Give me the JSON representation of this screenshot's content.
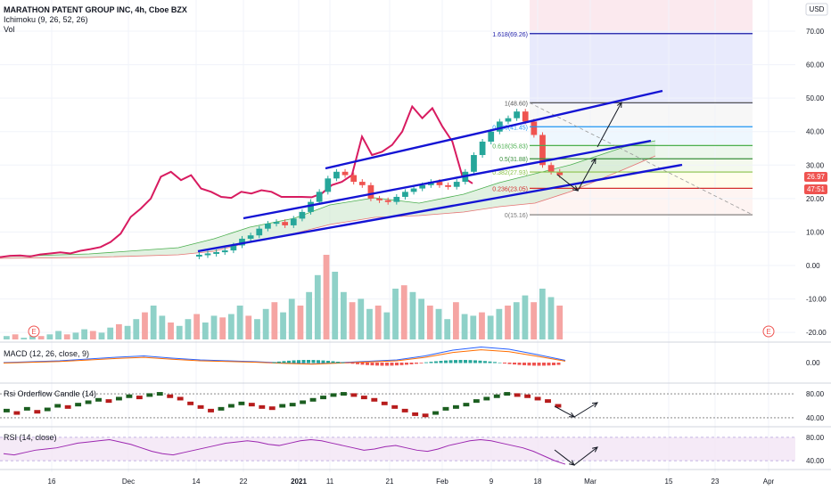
{
  "header": {
    "title": "MARATHON PATENT GROUP INC, 4h, Cboe BZX",
    "ichimoku_label": "Ichimoku (9, 26, 52, 26)",
    "vol_label": "Vol",
    "currency": "USD"
  },
  "panes": {
    "macd_label": "MACD (12, 26, close, 9)",
    "rsi_orderflow_label": "Rsi Orderflow Candle (14)",
    "rsi_label": "RSI (14, close)"
  },
  "price_tags": {
    "last_price": "26.97",
    "countdown": "47:51"
  },
  "colors": {
    "trend_channel": "#1414d4",
    "close_line": "#d81b60",
    "bull": "#26a69a",
    "bear": "#ef5350",
    "fib_1618": "#1a1aa8",
    "fib_1": "#555555",
    "fib_0786": "#2196f3",
    "fib_0618": "#4caf50",
    "fib_05": "#388e3c",
    "fib_0382": "#8bc34a",
    "fib_0236": "#d32f2f",
    "fib_0": "#777777",
    "rsi_line": "#9c27b0"
  },
  "chart_data": [
    {
      "type": "candlestick",
      "title": "MARATHON PATENT GROUP INC, 4h, Cboe BZX",
      "x_ticks": [
        "16",
        "Dec",
        "14",
        "22",
        "2021",
        "11",
        "21",
        "Feb",
        "9",
        "18",
        "Mar",
        "15",
        "23",
        "Apr"
      ],
      "y_ticks": [
        "70.00",
        "60.00",
        "50.00",
        "40.00",
        "30.00",
        "20.00",
        "10.00",
        "0.00",
        "-10.00",
        "-20.00"
      ],
      "ylim": [
        -22,
        77
      ],
      "close_series": [
        2.5,
        2.9,
        3.0,
        2.7,
        3.3,
        3.6,
        3.9,
        3.6,
        4.4,
        4.9,
        5.5,
        7.0,
        9.5,
        14.5,
        17.0,
        20.0,
        26.5,
        28.0,
        25.5,
        27.0,
        23.0,
        22.0,
        20.5,
        20.2,
        22.0,
        21.5,
        22.5,
        22.0,
        20.5,
        20.5,
        20.5,
        20.4,
        21.5,
        24.0,
        25.0,
        27.0,
        38.5,
        33.0,
        34.0,
        36.0,
        40.0,
        47.5,
        44.0,
        47.0,
        41.5,
        37.0,
        26.5,
        24.5
      ],
      "candles_close": [
        3.2,
        3.6,
        4.0,
        4.5,
        6.0,
        8.0,
        9.0,
        11.0,
        12.5,
        13.0,
        12.0,
        14.0,
        16.0,
        19.0,
        22.0,
        26.0,
        28.0,
        27.0,
        25.0,
        24.0,
        20.0,
        19.5,
        19.0,
        20.5,
        22.0,
        23.0,
        24.0,
        25.0,
        24.0,
        23.5,
        25.0,
        28.0,
        33.0,
        37.0,
        40.0,
        43.0,
        44.0,
        46.0,
        43.0,
        39.0,
        30.0,
        28.0,
        27.0
      ],
      "ichimoku_cloud_note": "",
      "fibonacci_levels": [
        {
          "ratio": "1.618",
          "price": "69.26",
          "label": "1.618(69.26)"
        },
        {
          "ratio": "1",
          "price": "48.60",
          "label": "1(48.60)"
        },
        {
          "ratio": "0.786",
          "price": "41.45",
          "label": "0.786(41.45)"
        },
        {
          "ratio": "0.618",
          "price": "35.83",
          "label": "0.618(35.83)"
        },
        {
          "ratio": "0.5",
          "price": "31.88",
          "label": "0.5(31.88)"
        },
        {
          "ratio": "0.382",
          "price": "27.93",
          "label": "0.382(27.93)"
        },
        {
          "ratio": "0.236",
          "price": "23.05",
          "label": "0.236(23.05)"
        },
        {
          "ratio": "0",
          "price": "15.16",
          "label": "0(15.16)"
        }
      ]
    },
    {
      "type": "bar",
      "title": "Vol",
      "values": [
        2,
        3,
        1,
        4,
        2,
        3,
        5,
        3,
        4,
        6,
        5,
        4,
        7,
        9,
        8,
        12,
        16,
        20,
        14,
        10,
        8,
        12,
        15,
        10,
        14,
        13,
        15,
        20,
        14,
        12,
        18,
        22,
        16,
        24,
        20,
        28,
        38,
        50,
        40,
        28,
        22,
        24,
        18,
        20,
        16,
        30,
        32,
        28,
        24,
        20,
        18,
        12,
        22,
        15,
        14,
        16,
        14,
        18,
        20,
        22,
        26,
        22,
        30,
        25,
        20
      ]
    },
    {
      "type": "line",
      "title": "MACD (12, 26, close, 9)",
      "y_ticks": [
        "0.00"
      ],
      "values": [
        0,
        0.2,
        0.4,
        0.8,
        1.2,
        1.5,
        1.0,
        0.6,
        0.4,
        0.2,
        -0.1,
        -0.3,
        0.0,
        0.3,
        0.6,
        1.5,
        2.8,
        3.5,
        3.0,
        1.8,
        0.5
      ]
    },
    {
      "type": "scatter",
      "title": "Rsi Orderflow Candle (14)",
      "y_ticks": [
        "80.00",
        "40.00"
      ],
      "ylim": [
        25,
        95
      ],
      "values": [
        52,
        48,
        55,
        50,
        54,
        60,
        58,
        62,
        66,
        70,
        68,
        72,
        76,
        74,
        78,
        80,
        76,
        72,
        64,
        58,
        52,
        55,
        60,
        64,
        62,
        58,
        56,
        60,
        62,
        66,
        70,
        74,
        78,
        80,
        78,
        74,
        70,
        64,
        58,
        52,
        46,
        44,
        48,
        55,
        58,
        62,
        68,
        72,
        76,
        80,
        78,
        76,
        72,
        68,
        60
      ]
    },
    {
      "type": "line",
      "title": "RSI (14, close)",
      "y_ticks": [
        "80.00",
        "40.00"
      ],
      "ylim": [
        25,
        95
      ],
      "values": [
        52,
        50,
        54,
        58,
        60,
        62,
        66,
        70,
        72,
        74,
        76,
        72,
        68,
        62,
        56,
        52,
        50,
        54,
        58,
        62,
        66,
        70,
        72,
        74,
        72,
        68,
        66,
        70,
        74,
        76,
        74,
        70,
        66,
        62,
        58,
        60,
        64,
        66,
        62,
        58,
        56,
        60,
        66,
        70,
        74,
        76,
        74,
        70,
        66,
        62,
        56,
        48,
        40,
        34
      ]
    }
  ]
}
